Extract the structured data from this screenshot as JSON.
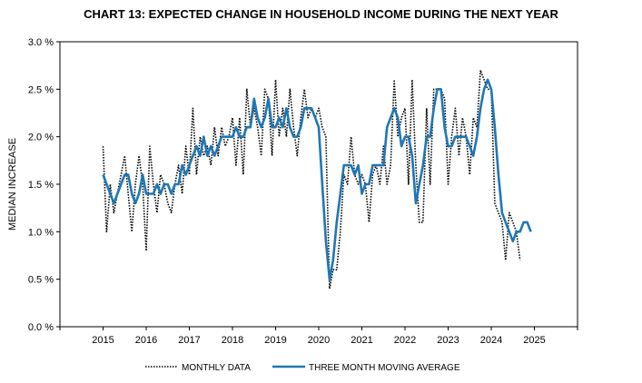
{
  "chart_data": {
    "type": "line",
    "title": "CHART 13: EXPECTED CHANGE IN HOUSEHOLD INCOME DURING THE NEXT YEAR",
    "xlabel": "",
    "ylabel": "MEDIAN INCREASE",
    "xlim": [
      2014,
      2026
    ],
    "ylim": [
      0,
      3.0
    ],
    "x_ticks": [
      "2015",
      "2016",
      "2017",
      "2018",
      "2019",
      "2020",
      "2021",
      "2022",
      "2023",
      "2024",
      "2025"
    ],
    "y_ticks": [
      "0.0 %",
      "0.5 %",
      "1.0 %",
      "1.5 %",
      "2.0 %",
      "2.5 %",
      "3.0 %"
    ],
    "grid": false,
    "legend_position": "bottom",
    "series": [
      {
        "name": "MONTHLY DATA",
        "style": "dotted",
        "color": "#000000",
        "points": [
          [
            2015.0,
            1.9
          ],
          [
            2015.083,
            1.0
          ],
          [
            2015.167,
            1.5
          ],
          [
            2015.25,
            1.2
          ],
          [
            2015.333,
            1.4
          ],
          [
            2015.417,
            1.6
          ],
          [
            2015.5,
            1.8
          ],
          [
            2015.583,
            1.4
          ],
          [
            2015.667,
            1.0
          ],
          [
            2015.75,
            1.5
          ],
          [
            2015.833,
            1.8
          ],
          [
            2015.917,
            1.5
          ],
          [
            2016.0,
            0.8
          ],
          [
            2016.083,
            1.9
          ],
          [
            2016.167,
            1.5
          ],
          [
            2016.25,
            1.2
          ],
          [
            2016.333,
            1.6
          ],
          [
            2016.417,
            1.5
          ],
          [
            2016.5,
            1.3
          ],
          [
            2016.583,
            1.2
          ],
          [
            2016.667,
            1.5
          ],
          [
            2016.75,
            1.7
          ],
          [
            2016.833,
            1.4
          ],
          [
            2016.917,
            1.9
          ],
          [
            2017.0,
            1.6
          ],
          [
            2017.083,
            2.3
          ],
          [
            2017.167,
            1.6
          ],
          [
            2017.25,
            2.0
          ],
          [
            2017.333,
            1.8
          ],
          [
            2017.417,
            1.9
          ],
          [
            2017.5,
            1.7
          ],
          [
            2017.583,
            2.1
          ],
          [
            2017.667,
            1.8
          ],
          [
            2017.75,
            2.1
          ],
          [
            2017.833,
            1.9
          ],
          [
            2017.917,
            2.0
          ],
          [
            2018.0,
            2.2
          ],
          [
            2018.083,
            1.7
          ],
          [
            2018.167,
            2.2
          ],
          [
            2018.25,
            1.6
          ],
          [
            2018.333,
            2.5
          ],
          [
            2018.417,
            2.1
          ],
          [
            2018.5,
            2.3
          ],
          [
            2018.583,
            2.1
          ],
          [
            2018.667,
            1.8
          ],
          [
            2018.75,
            2.5
          ],
          [
            2018.833,
            2.4
          ],
          [
            2018.917,
            1.8
          ],
          [
            2019.0,
            2.6
          ],
          [
            2019.083,
            2.0
          ],
          [
            2019.167,
            2.3
          ],
          [
            2019.25,
            2.0
          ],
          [
            2019.333,
            2.5
          ],
          [
            2019.417,
            2.1
          ],
          [
            2019.5,
            1.8
          ],
          [
            2019.583,
            2.2
          ],
          [
            2019.667,
            2.5
          ],
          [
            2019.75,
            2.2
          ],
          [
            2019.833,
            2.3
          ],
          [
            2019.917,
            2.2
          ],
          [
            2020.0,
            2.3
          ],
          [
            2020.083,
            2.1
          ],
          [
            2020.167,
            2.0
          ],
          [
            2020.25,
            0.4
          ],
          [
            2020.333,
            0.6
          ],
          [
            2020.417,
            0.6
          ],
          [
            2020.5,
            1.0
          ],
          [
            2020.583,
            1.6
          ],
          [
            2020.667,
            1.5
          ],
          [
            2020.75,
            2.0
          ],
          [
            2020.833,
            1.6
          ],
          [
            2020.917,
            1.5
          ],
          [
            2021.0,
            1.6
          ],
          [
            2021.083,
            1.5
          ],
          [
            2021.167,
            1.1
          ],
          [
            2021.25,
            1.6
          ],
          [
            2021.333,
            1.7
          ],
          [
            2021.417,
            1.5
          ],
          [
            2021.5,
            1.9
          ],
          [
            2021.583,
            1.5
          ],
          [
            2021.667,
            1.7
          ],
          [
            2021.75,
            2.6
          ],
          [
            2021.833,
            2.0
          ],
          [
            2021.917,
            2.2
          ],
          [
            2022.0,
            2.3
          ],
          [
            2022.083,
            1.5
          ],
          [
            2022.167,
            2.6
          ],
          [
            2022.25,
            1.7
          ],
          [
            2022.333,
            1.1
          ],
          [
            2022.417,
            1.1
          ],
          [
            2022.5,
            2.3
          ],
          [
            2022.583,
            1.5
          ],
          [
            2022.667,
            2.5
          ],
          [
            2022.75,
            2.5
          ],
          [
            2022.833,
            2.5
          ],
          [
            2022.917,
            2.4
          ],
          [
            2023.0,
            1.5
          ],
          [
            2023.083,
            2.0
          ],
          [
            2023.167,
            2.3
          ],
          [
            2023.25,
            1.8
          ],
          [
            2023.333,
            2.2
          ],
          [
            2023.417,
            2.0
          ],
          [
            2023.5,
            1.6
          ],
          [
            2023.583,
            2.2
          ],
          [
            2023.667,
            2.1
          ],
          [
            2023.75,
            2.7
          ],
          [
            2023.833,
            2.6
          ],
          [
            2023.917,
            2.5
          ],
          [
            2024.0,
            2.5
          ],
          [
            2024.083,
            1.3
          ],
          [
            2024.167,
            1.2
          ],
          [
            2024.25,
            1.1
          ],
          [
            2024.333,
            0.7
          ],
          [
            2024.417,
            1.2
          ],
          [
            2024.5,
            1.1
          ],
          [
            2024.583,
            1.0
          ],
          [
            2024.667,
            0.7
          ]
        ]
      },
      {
        "name": "THREE MONTH MOVING AVERAGE",
        "style": "solid",
        "color": "#1f77b4",
        "points": [
          [
            2015.0,
            1.6
          ],
          [
            2015.083,
            1.5
          ],
          [
            2015.167,
            1.4
          ],
          [
            2015.25,
            1.3
          ],
          [
            2015.333,
            1.4
          ],
          [
            2015.417,
            1.5
          ],
          [
            2015.5,
            1.6
          ],
          [
            2015.583,
            1.6
          ],
          [
            2015.667,
            1.4
          ],
          [
            2015.75,
            1.3
          ],
          [
            2015.833,
            1.4
          ],
          [
            2015.917,
            1.6
          ],
          [
            2016.0,
            1.4
          ],
          [
            2016.083,
            1.4
          ],
          [
            2016.167,
            1.4
          ],
          [
            2016.25,
            1.5
          ],
          [
            2016.333,
            1.4
          ],
          [
            2016.417,
            1.5
          ],
          [
            2016.5,
            1.5
          ],
          [
            2016.583,
            1.4
          ],
          [
            2016.667,
            1.5
          ],
          [
            2016.75,
            1.5
          ],
          [
            2016.833,
            1.7
          ],
          [
            2016.917,
            1.6
          ],
          [
            2017.0,
            1.7
          ],
          [
            2017.083,
            1.8
          ],
          [
            2017.167,
            1.9
          ],
          [
            2017.25,
            1.8
          ],
          [
            2017.333,
            2.0
          ],
          [
            2017.417,
            1.8
          ],
          [
            2017.5,
            1.9
          ],
          [
            2017.583,
            1.8
          ],
          [
            2017.667,
            1.9
          ],
          [
            2017.75,
            2.0
          ],
          [
            2017.833,
            2.0
          ],
          [
            2017.917,
            2.0
          ],
          [
            2018.0,
            2.0
          ],
          [
            2018.083,
            2.1
          ],
          [
            2018.167,
            2.0
          ],
          [
            2018.25,
            2.0
          ],
          [
            2018.333,
            2.1
          ],
          [
            2018.417,
            2.1
          ],
          [
            2018.5,
            2.4
          ],
          [
            2018.583,
            2.2
          ],
          [
            2018.667,
            2.1
          ],
          [
            2018.75,
            2.2
          ],
          [
            2018.833,
            2.4
          ],
          [
            2018.917,
            2.1
          ],
          [
            2019.0,
            2.1
          ],
          [
            2019.083,
            2.2
          ],
          [
            2019.167,
            2.1
          ],
          [
            2019.25,
            2.3
          ],
          [
            2019.333,
            2.1
          ],
          [
            2019.417,
            2.0
          ],
          [
            2019.5,
            2.0
          ],
          [
            2019.583,
            2.1
          ],
          [
            2019.667,
            2.3
          ],
          [
            2019.75,
            2.3
          ],
          [
            2019.833,
            2.3
          ],
          [
            2019.917,
            2.2
          ],
          [
            2020.0,
            2.1
          ],
          [
            2020.083,
            1.5
          ],
          [
            2020.167,
            0.9
          ],
          [
            2020.25,
            0.5
          ],
          [
            2020.333,
            0.7
          ],
          [
            2020.417,
            1.1
          ],
          [
            2020.5,
            1.4
          ],
          [
            2020.583,
            1.7
          ],
          [
            2020.667,
            1.7
          ],
          [
            2020.75,
            1.7
          ],
          [
            2020.833,
            1.6
          ],
          [
            2020.917,
            1.7
          ],
          [
            2021.0,
            1.4
          ],
          [
            2021.083,
            1.5
          ],
          [
            2021.167,
            1.5
          ],
          [
            2021.25,
            1.7
          ],
          [
            2021.333,
            1.7
          ],
          [
            2021.417,
            1.7
          ],
          [
            2021.5,
            1.7
          ],
          [
            2021.583,
            2.1
          ],
          [
            2021.667,
            2.2
          ],
          [
            2021.75,
            2.3
          ],
          [
            2021.833,
            2.2
          ],
          [
            2021.917,
            1.9
          ],
          [
            2022.0,
            2.0
          ],
          [
            2022.083,
            2.0
          ],
          [
            2022.167,
            1.8
          ],
          [
            2022.25,
            1.3
          ],
          [
            2022.333,
            1.5
          ],
          [
            2022.417,
            1.7
          ],
          [
            2022.5,
            2.0
          ],
          [
            2022.583,
            2.0
          ],
          [
            2022.667,
            2.3
          ],
          [
            2022.75,
            2.5
          ],
          [
            2022.833,
            2.5
          ],
          [
            2022.917,
            2.1
          ],
          [
            2023.0,
            1.9
          ],
          [
            2023.083,
            1.9
          ],
          [
            2023.167,
            2.0
          ],
          [
            2023.25,
            2.0
          ],
          [
            2023.333,
            2.0
          ],
          [
            2023.417,
            2.0
          ],
          [
            2023.5,
            1.9
          ],
          [
            2023.583,
            1.8
          ],
          [
            2023.667,
            2.0
          ],
          [
            2023.75,
            2.3
          ],
          [
            2023.833,
            2.5
          ],
          [
            2023.917,
            2.6
          ],
          [
            2024.0,
            2.5
          ],
          [
            2024.083,
            2.1
          ],
          [
            2024.167,
            1.6
          ],
          [
            2024.25,
            1.2
          ],
          [
            2024.333,
            1.1
          ],
          [
            2024.417,
            1.0
          ],
          [
            2024.5,
            0.9
          ],
          [
            2024.583,
            1.0
          ],
          [
            2024.667,
            1.0
          ],
          [
            2024.75,
            1.1
          ],
          [
            2024.833,
            1.1
          ],
          [
            2024.917,
            1.0
          ]
        ]
      }
    ]
  }
}
